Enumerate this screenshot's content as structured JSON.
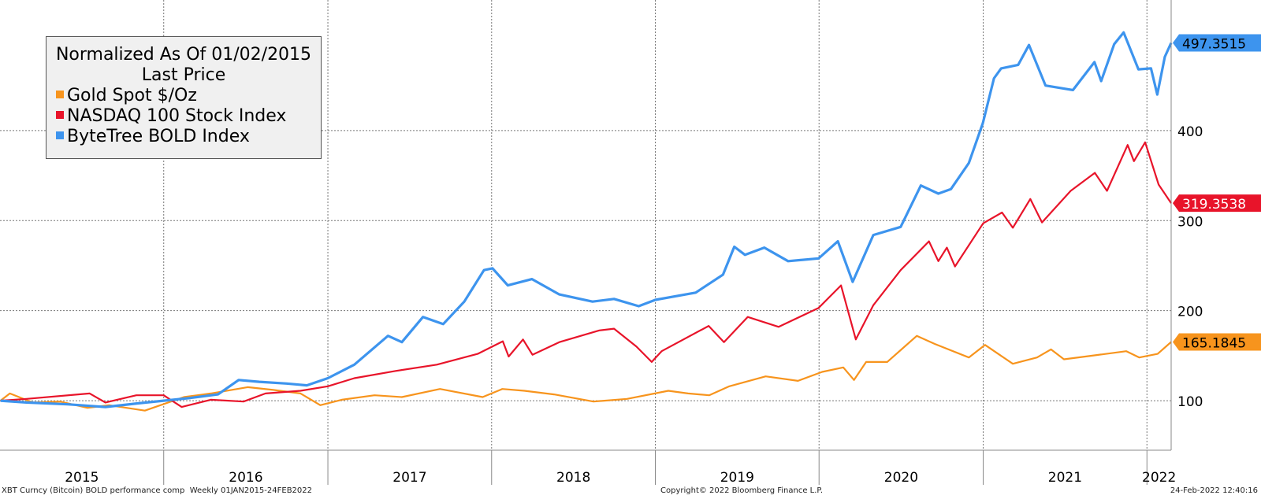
{
  "chart_data": {
    "type": "line",
    "legend": {
      "title_line1": "Normalized As Of 01/02/2015",
      "title_line2": "Last Price",
      "placement": "top-left"
    },
    "x_range": [
      "2015-01-01",
      "2022-02-24"
    ],
    "ylim": [
      45,
      545
    ],
    "y_ticks": [
      100,
      200,
      300,
      400
    ],
    "year_labels": [
      "2015",
      "2016",
      "2017",
      "2018",
      "2019",
      "2020",
      "2021",
      "2022"
    ],
    "grid": true,
    "series": [
      {
        "name": "Gold Spot $/Oz",
        "color": "#f7941d",
        "last_value": "165.1845",
        "points": [
          [
            "2015-01-02",
            100
          ],
          [
            "2015-01-23",
            108
          ],
          [
            "2015-03-15",
            98
          ],
          [
            "2015-05-15",
            99
          ],
          [
            "2015-07-15",
            92
          ],
          [
            "2015-09-01",
            95
          ],
          [
            "2015-11-20",
            89
          ],
          [
            "2016-02-15",
            104
          ],
          [
            "2016-04-15",
            108
          ],
          [
            "2016-07-06",
            115
          ],
          [
            "2016-09-01",
            112
          ],
          [
            "2016-11-01",
            108
          ],
          [
            "2016-12-15",
            95
          ],
          [
            "2017-02-01",
            101
          ],
          [
            "2017-04-15",
            106
          ],
          [
            "2017-06-15",
            104
          ],
          [
            "2017-09-08",
            113
          ],
          [
            "2017-12-12",
            104
          ],
          [
            "2018-01-25",
            113
          ],
          [
            "2018-03-15",
            111
          ],
          [
            "2018-05-20",
            107
          ],
          [
            "2018-08-16",
            99
          ],
          [
            "2018-10-30",
            102
          ],
          [
            "2019-01-30",
            111
          ],
          [
            "2019-03-15",
            108
          ],
          [
            "2019-05-01",
            106
          ],
          [
            "2019-06-15",
            116
          ],
          [
            "2019-09-04",
            127
          ],
          [
            "2019-11-15",
            122
          ],
          [
            "2020-01-08",
            132
          ],
          [
            "2020-02-24",
            137
          ],
          [
            "2020-03-19",
            123
          ],
          [
            "2020-04-15",
            143
          ],
          [
            "2020-06-01",
            143
          ],
          [
            "2020-08-06",
            172
          ],
          [
            "2020-09-15",
            163
          ],
          [
            "2020-11-30",
            148
          ],
          [
            "2021-01-05",
            162
          ],
          [
            "2021-03-08",
            141
          ],
          [
            "2021-05-01",
            148
          ],
          [
            "2021-06-01",
            157
          ],
          [
            "2021-06-30",
            146
          ],
          [
            "2021-09-01",
            150
          ],
          [
            "2021-11-16",
            155
          ],
          [
            "2021-12-15",
            148
          ],
          [
            "2022-01-25",
            152
          ],
          [
            "2022-02-24",
            165.1845
          ]
        ]
      },
      {
        "name": "NASDAQ 100 Stock Index",
        "color": "#e8142a",
        "last_value": "319.3538",
        "points": [
          [
            "2015-01-02",
            100
          ],
          [
            "2015-03-01",
            102
          ],
          [
            "2015-07-20",
            108
          ],
          [
            "2015-08-24",
            98
          ],
          [
            "2015-11-01",
            106
          ],
          [
            "2016-01-01",
            106
          ],
          [
            "2016-02-10",
            93
          ],
          [
            "2016-04-15",
            101
          ],
          [
            "2016-06-27",
            99
          ],
          [
            "2016-08-15",
            108
          ],
          [
            "2016-11-01",
            111
          ],
          [
            "2017-01-01",
            116
          ],
          [
            "2017-03-01",
            125
          ],
          [
            "2017-06-01",
            133
          ],
          [
            "2017-09-01",
            140
          ],
          [
            "2017-12-01",
            152
          ],
          [
            "2018-01-26",
            166
          ],
          [
            "2018-02-08",
            149
          ],
          [
            "2018-03-12",
            168
          ],
          [
            "2018-04-02",
            151
          ],
          [
            "2018-06-01",
            165
          ],
          [
            "2018-08-29",
            178
          ],
          [
            "2018-10-01",
            180
          ],
          [
            "2018-11-20",
            160
          ],
          [
            "2018-12-24",
            143
          ],
          [
            "2019-01-15",
            155
          ],
          [
            "2019-04-30",
            183
          ],
          [
            "2019-06-03",
            165
          ],
          [
            "2019-07-26",
            193
          ],
          [
            "2019-10-03",
            182
          ],
          [
            "2019-12-31",
            203
          ],
          [
            "2020-02-19",
            228
          ],
          [
            "2020-03-23",
            168
          ],
          [
            "2020-05-01",
            206
          ],
          [
            "2020-07-01",
            245
          ],
          [
            "2020-09-02",
            277
          ],
          [
            "2020-09-23",
            255
          ],
          [
            "2020-10-12",
            270
          ],
          [
            "2020-10-30",
            249
          ],
          [
            "2021-01-01",
            297
          ],
          [
            "2021-02-12",
            309
          ],
          [
            "2021-03-08",
            292
          ],
          [
            "2021-04-16",
            324
          ],
          [
            "2021-05-12",
            298
          ],
          [
            "2021-07-15",
            333
          ],
          [
            "2021-09-07",
            353
          ],
          [
            "2021-10-04",
            333
          ],
          [
            "2021-11-19",
            384
          ],
          [
            "2021-12-03",
            366
          ],
          [
            "2021-12-28",
            387
          ],
          [
            "2022-01-27",
            340
          ],
          [
            "2022-02-24",
            319.3538
          ]
        ]
      },
      {
        "name": "ByteTree BOLD Index",
        "color": "#3d94ee",
        "last_value": "497.3515",
        "points": [
          [
            "2015-01-02",
            100
          ],
          [
            "2015-03-01",
            98
          ],
          [
            "2015-06-01",
            96
          ],
          [
            "2015-08-24",
            93
          ],
          [
            "2015-11-04",
            97
          ],
          [
            "2016-01-01",
            100
          ],
          [
            "2016-03-01",
            103
          ],
          [
            "2016-05-01",
            107
          ],
          [
            "2016-06-16",
            123
          ],
          [
            "2016-08-01",
            121
          ],
          [
            "2016-10-01",
            119
          ],
          [
            "2016-11-15",
            117
          ],
          [
            "2017-01-01",
            125
          ],
          [
            "2017-03-01",
            140
          ],
          [
            "2017-05-15",
            172
          ],
          [
            "2017-06-15",
            165
          ],
          [
            "2017-08-01",
            193
          ],
          [
            "2017-09-15",
            185
          ],
          [
            "2017-11-01",
            210
          ],
          [
            "2017-12-15",
            245
          ],
          [
            "2018-01-03",
            247
          ],
          [
            "2018-02-06",
            228
          ],
          [
            "2018-04-01",
            235
          ],
          [
            "2018-06-01",
            218
          ],
          [
            "2018-08-14",
            210
          ],
          [
            "2018-10-01",
            213
          ],
          [
            "2018-11-25",
            205
          ],
          [
            "2019-01-01",
            212
          ],
          [
            "2019-04-01",
            220
          ],
          [
            "2019-06-01",
            240
          ],
          [
            "2019-06-26",
            271
          ],
          [
            "2019-07-20",
            262
          ],
          [
            "2019-09-01",
            270
          ],
          [
            "2019-10-24",
            255
          ],
          [
            "2019-12-31",
            258
          ],
          [
            "2020-02-12",
            277
          ],
          [
            "2020-03-16",
            232
          ],
          [
            "2020-05-01",
            284
          ],
          [
            "2020-07-01",
            293
          ],
          [
            "2020-08-15",
            339
          ],
          [
            "2020-09-23",
            330
          ],
          [
            "2020-10-21",
            335
          ],
          [
            "2020-11-30",
            364
          ],
          [
            "2020-12-31",
            408
          ],
          [
            "2021-01-25",
            458
          ],
          [
            "2021-02-10",
            469
          ],
          [
            "2021-03-20",
            473
          ],
          [
            "2021-04-13",
            495
          ],
          [
            "2021-05-20",
            450
          ],
          [
            "2021-07-20",
            445
          ],
          [
            "2021-09-06",
            476
          ],
          [
            "2021-09-21",
            455
          ],
          [
            "2021-10-20",
            496
          ],
          [
            "2021-11-10",
            509
          ],
          [
            "2021-12-13",
            468
          ],
          [
            "2022-01-10",
            469
          ],
          [
            "2022-01-24",
            440
          ],
          [
            "2022-02-10",
            482
          ],
          [
            "2022-02-24",
            497.3515
          ]
        ]
      }
    ]
  },
  "footer": {
    "left": "XBT Curncy (Bitcoin) BOLD performance comp  Weekly 01JAN2015-24FEB2022",
    "center": "Copyright© 2022 Bloomberg Finance L.P.",
    "right": "24-Feb-2022 12:40:16"
  }
}
